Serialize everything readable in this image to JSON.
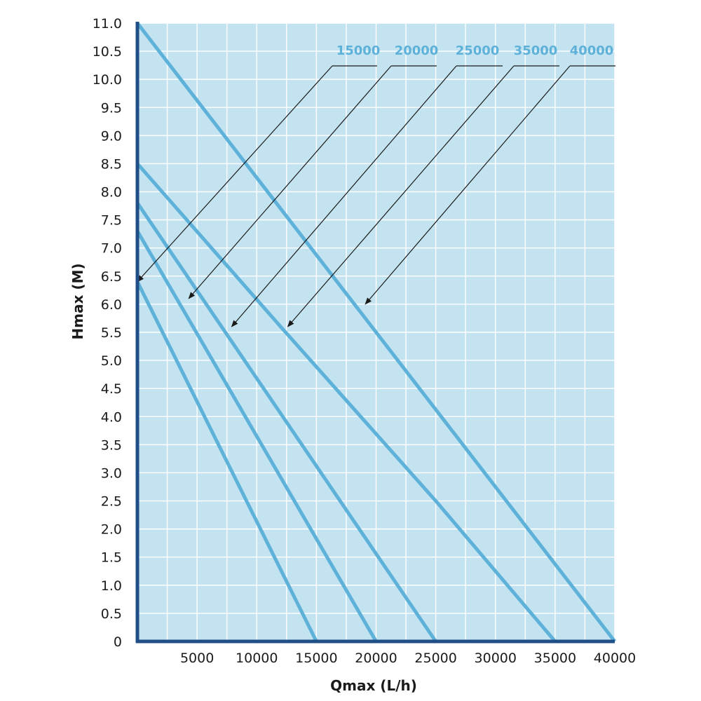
{
  "chart_data": {
    "type": "line",
    "title": "",
    "xlabel": "Qmax (L/h)",
    "ylabel": "Hmax (M)",
    "xlim": [
      0,
      40000
    ],
    "ylim": [
      0,
      11
    ],
    "grid": true,
    "x_ticks": [
      "5000",
      "10000",
      "15000",
      "20000",
      "25000",
      "30000",
      "35000",
      "40000"
    ],
    "y_ticks": [
      "0",
      "0.5",
      "1.0",
      "1.5",
      "2.0",
      "2.5",
      "3.0",
      "3.5",
      "4.0",
      "4.5",
      "5.0",
      "5.5",
      "6.0",
      "6.5",
      "7.0",
      "7.5",
      "8.0",
      "8.5",
      "9.0",
      "9.5",
      "10.0",
      "10.5",
      "11.0"
    ],
    "legend_placement": "top-right",
    "series": [
      {
        "name": "15000",
        "points": [
          [
            0,
            6.4
          ],
          [
            15000,
            0
          ]
        ],
        "pointer": [
          0,
          6.4
        ]
      },
      {
        "name": "20000",
        "points": [
          [
            0,
            7.3
          ],
          [
            20000,
            0
          ]
        ],
        "pointer": [
          4300,
          6.1
        ]
      },
      {
        "name": "25000",
        "points": [
          [
            0,
            7.8
          ],
          [
            25000,
            0
          ]
        ],
        "pointer": [
          7900,
          5.6
        ]
      },
      {
        "name": "35000",
        "points": [
          [
            0,
            8.5
          ],
          [
            12000,
            5.6
          ],
          [
            25000,
            2.5
          ],
          [
            35000,
            0
          ]
        ],
        "pointer": [
          12600,
          5.6
        ]
      },
      {
        "name": "40000",
        "points": [
          [
            0,
            11.0
          ],
          [
            40000,
            0
          ]
        ],
        "pointer": [
          19100,
          6.0
        ]
      }
    ],
    "colors": {
      "background": "#c4e3f0",
      "grid": "#ffffff",
      "line": "#5eb1d8",
      "legend_text": "#5eb1d8",
      "axis": "#1f4f86",
      "pointer": "#1b1b1b"
    }
  }
}
